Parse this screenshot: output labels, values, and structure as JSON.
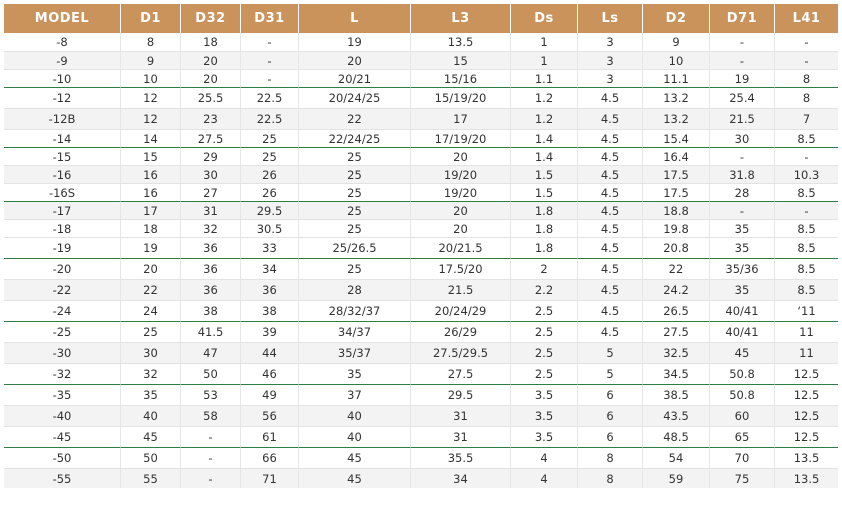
{
  "table": {
    "headers": [
      "MODEL",
      "D1",
      "D32",
      "D31",
      "L",
      "L3",
      "Ds",
      "Ls",
      "D2",
      "D71",
      "L41"
    ],
    "rows": [
      [
        "-8",
        "8",
        "18",
        "-",
        "19",
        "13.5",
        "1",
        "3",
        "9",
        "-",
        "-"
      ],
      [
        "-9",
        "9",
        "20",
        "-",
        "20",
        "15",
        "1",
        "3",
        "10",
        "-",
        "-"
      ],
      [
        "-10",
        "10",
        "20",
        "-",
        "20/21",
        "15/16",
        "1.1",
        "3",
        "11.1",
        "19",
        "8"
      ],
      [
        "-12",
        "12",
        "25.5",
        "22.5",
        "20/24/25",
        "15/19/20",
        "1.2",
        "4.5",
        "13.2",
        "25.4",
        "8"
      ],
      [
        "-12B",
        "12",
        "23",
        "22.5",
        "22",
        "17",
        "1.2",
        "4.5",
        "13.2",
        "21.5",
        "7"
      ],
      [
        "-14",
        "14",
        "27.5",
        "25",
        "22/24/25",
        "17/19/20",
        "1.4",
        "4.5",
        "15.4",
        "30",
        "8.5"
      ],
      [
        "-15",
        "15",
        "29",
        "25",
        "25",
        "20",
        "1.4",
        "4.5",
        "16.4",
        "-",
        "-"
      ],
      [
        "-16",
        "16",
        "30",
        "26",
        "25",
        "19/20",
        "1.5",
        "4.5",
        "17.5",
        "31.8",
        "10.3"
      ],
      [
        "-16S",
        "16",
        "27",
        "26",
        "25",
        "19/20",
        "1.5",
        "4.5",
        "17.5",
        "28",
        "8.5"
      ],
      [
        "-17",
        "17",
        "31",
        "29.5",
        "25",
        "20",
        "1.8",
        "4.5",
        "18.8",
        "-",
        "-"
      ],
      [
        "-18",
        "18",
        "32",
        "30.5",
        "25",
        "20",
        "1.8",
        "4.5",
        "19.8",
        "35",
        "8.5"
      ],
      [
        "-19",
        "19",
        "36",
        "33",
        "25/26.5",
        "20/21.5",
        "1.8",
        "4.5",
        "20.8",
        "35",
        "8.5"
      ],
      [
        "-20",
        "20",
        "36",
        "34",
        "25",
        "17.5/20",
        "2",
        "4.5",
        "22",
        "35/36",
        "8.5"
      ],
      [
        "-22",
        "22",
        "36",
        "36",
        "28",
        "21.5",
        "2.2",
        "4.5",
        "24.2",
        "35",
        "8.5"
      ],
      [
        "-24",
        "24",
        "38",
        "38",
        "28/32/37",
        "20/24/29",
        "2.5",
        "4.5",
        "26.5",
        "40/41",
        "‘11"
      ],
      [
        "-25",
        "25",
        "41.5",
        "39",
        "34/37",
        "26/29",
        "2.5",
        "4.5",
        "27.5",
        "40/41",
        "11"
      ],
      [
        "-30",
        "30",
        "47",
        "44",
        "35/37",
        "27.5/29.5",
        "2.5",
        "5",
        "32.5",
        "45",
        "11"
      ],
      [
        "-32",
        "32",
        "50",
        "46",
        "35",
        "27.5",
        "2.5",
        "5",
        "34.5",
        "50.8",
        "12.5"
      ],
      [
        "-35",
        "35",
        "53",
        "49",
        "37",
        "29.5",
        "3.5",
        "6",
        "38.5",
        "50.8",
        "12.5"
      ],
      [
        "-40",
        "40",
        "58",
        "56",
        "40",
        "31",
        "3.5",
        "6",
        "43.5",
        "60",
        "12.5"
      ],
      [
        "-45",
        "45",
        "-",
        "61",
        "40",
        "31",
        "3.5",
        "6",
        "48.5",
        "65",
        "12.5"
      ],
      [
        "-50",
        "50",
        "-",
        "66",
        "45",
        "35.5",
        "4",
        "8",
        "54",
        "70",
        "13.5"
      ],
      [
        "-55",
        "55",
        "-",
        "71",
        "45",
        "34",
        "4",
        "8",
        "59",
        "75",
        "13.5"
      ]
    ]
  },
  "colors": {
    "header_bg": "#c9935b",
    "header_text": "#ffffff",
    "group_separator": "#2e7d45",
    "band_bg": "#f3f3f3"
  }
}
